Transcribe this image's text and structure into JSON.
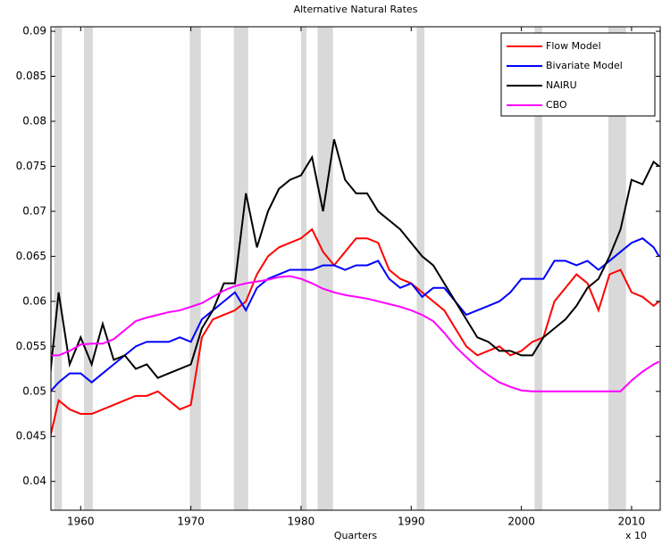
{
  "chart_data": {
    "type": "line",
    "title": "Alternative Natural Rates",
    "x_label": "Quarters",
    "x_multiplier": "x 10",
    "x": [
      1957.25,
      1958,
      1959,
      1960,
      1961,
      1962,
      1963,
      1964,
      1965,
      1966,
      1967,
      1968,
      1969,
      1970,
      1971,
      1972,
      1973,
      1974,
      1975,
      1976,
      1977,
      1978,
      1979,
      1980,
      1981,
      1982,
      1983,
      1984,
      1985,
      1986,
      1987,
      1988,
      1989,
      1990,
      1991,
      1992,
      1993,
      1994,
      1995,
      1996,
      1997,
      1998,
      1999,
      2000,
      2001,
      2002,
      2003,
      2004,
      2005,
      2006,
      2007,
      2008,
      2009,
      2010,
      2011,
      2012,
      2012.5
    ],
    "series": [
      {
        "name": "Flow Model",
        "color": "#ff0000",
        "values": [
          0.045,
          0.049,
          0.048,
          0.0475,
          0.0475,
          0.048,
          0.0485,
          0.049,
          0.0495,
          0.0495,
          0.05,
          0.049,
          0.048,
          0.0485,
          0.056,
          0.058,
          0.0585,
          0.059,
          0.06,
          0.063,
          0.065,
          0.066,
          0.0665,
          0.067,
          0.068,
          0.0655,
          0.064,
          0.0655,
          0.067,
          0.067,
          0.0665,
          0.0635,
          0.0625,
          0.062,
          0.061,
          0.06,
          0.059,
          0.057,
          0.055,
          0.054,
          0.0545,
          0.055,
          0.054,
          0.0545,
          0.0555,
          0.056,
          0.06,
          0.0615,
          0.063,
          0.062,
          0.059,
          0.063,
          0.0635,
          0.061,
          0.0605,
          0.0595,
          0.06
        ]
      },
      {
        "name": "Bivariate Model",
        "color": "#0000ff",
        "values": [
          0.05,
          0.051,
          0.052,
          0.052,
          0.051,
          0.052,
          0.053,
          0.054,
          0.055,
          0.0555,
          0.0555,
          0.0555,
          0.056,
          0.0555,
          0.058,
          0.059,
          0.06,
          0.061,
          0.059,
          0.0615,
          0.0625,
          0.063,
          0.0635,
          0.0635,
          0.0635,
          0.064,
          0.064,
          0.0635,
          0.064,
          0.064,
          0.0645,
          0.0625,
          0.0615,
          0.062,
          0.0605,
          0.0615,
          0.0615,
          0.06,
          0.0585,
          0.059,
          0.0595,
          0.06,
          0.061,
          0.0625,
          0.0625,
          0.0625,
          0.0645,
          0.0645,
          0.064,
          0.0645,
          0.0635,
          0.0645,
          0.0655,
          0.0665,
          0.067,
          0.066,
          0.065
        ]
      },
      {
        "name": "NAIRU",
        "color": "#000000",
        "values": [
          0.052,
          0.061,
          0.053,
          0.056,
          0.053,
          0.0575,
          0.0535,
          0.054,
          0.0525,
          0.053,
          0.0515,
          0.052,
          0.0525,
          0.053,
          0.057,
          0.059,
          0.062,
          0.062,
          0.072,
          0.066,
          0.07,
          0.0725,
          0.0735,
          0.074,
          0.076,
          0.07,
          0.078,
          0.0735,
          0.072,
          0.072,
          0.07,
          0.069,
          0.068,
          0.0665,
          0.065,
          0.064,
          0.062,
          0.06,
          0.058,
          0.056,
          0.0555,
          0.0545,
          0.0545,
          0.054,
          0.054,
          0.056,
          0.057,
          0.058,
          0.0595,
          0.0615,
          0.0625,
          0.065,
          0.068,
          0.0735,
          0.073,
          0.0755,
          0.075
        ]
      },
      {
        "name": "CBO",
        "color": "#ff00ff",
        "values": [
          0.054,
          0.054,
          0.0545,
          0.0552,
          0.0553,
          0.0553,
          0.0558,
          0.0568,
          0.0578,
          0.0582,
          0.0585,
          0.0588,
          0.059,
          0.0594,
          0.0598,
          0.0605,
          0.0612,
          0.0617,
          0.062,
          0.0622,
          0.0624,
          0.0627,
          0.0628,
          0.0625,
          0.062,
          0.0614,
          0.061,
          0.0607,
          0.0605,
          0.0603,
          0.06,
          0.0597,
          0.0594,
          0.059,
          0.0585,
          0.0578,
          0.0565,
          0.055,
          0.0538,
          0.0527,
          0.0518,
          0.051,
          0.0505,
          0.0501,
          0.05,
          0.05,
          0.05,
          0.05,
          0.05,
          0.05,
          0.05,
          0.05,
          0.05,
          0.0512,
          0.0522,
          0.053,
          0.0533
        ]
      }
    ],
    "recessions": [
      [
        1957.6,
        1958.3
      ],
      [
        1960.3,
        1961.1
      ],
      [
        1969.9,
        1970.9
      ],
      [
        1973.9,
        1975.2
      ],
      [
        1980.0,
        1980.5
      ],
      [
        1981.5,
        1982.9
      ],
      [
        1990.5,
        1991.2
      ],
      [
        2001.2,
        2001.9
      ],
      [
        2007.9,
        2009.5
      ]
    ],
    "recession_color": "#d9d9d9",
    "xlim": [
      1957.3,
      2012.6
    ],
    "xticks": [
      1960,
      1970,
      1980,
      1990,
      2000,
      2010
    ],
    "ylim": [
      0.0368,
      0.0905
    ],
    "yticks": [
      0.04,
      0.045,
      0.05,
      0.055,
      0.06,
      0.065,
      0.07,
      0.075,
      0.08,
      0.085,
      0.09
    ],
    "legend": "top-right"
  }
}
